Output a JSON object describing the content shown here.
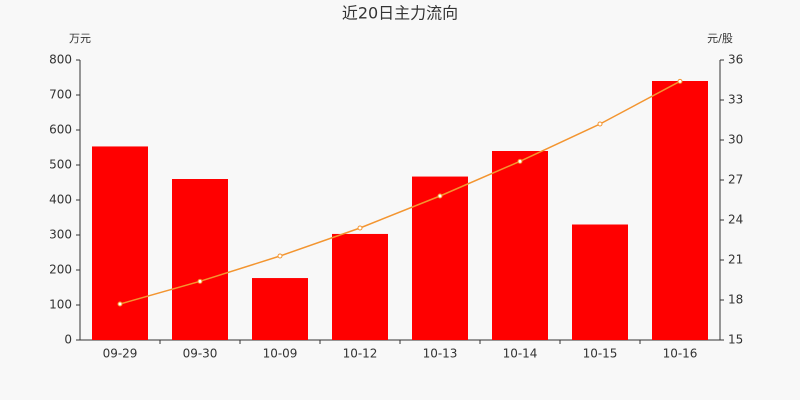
{
  "chart_data": {
    "type": "bar",
    "title": "近20日主力流向",
    "ylabel": "万元",
    "y2label": "元/股",
    "categories": [
      "09-29",
      "09-30",
      "10-09",
      "10-12",
      "10-13",
      "10-14",
      "10-15",
      "10-16"
    ],
    "series": [
      {
        "type": "bar",
        "color": "#ff0000",
        "values": [
          553,
          460,
          177,
          303,
          467,
          540,
          330,
          740
        ]
      },
      {
        "type": "line",
        "axis": "y2",
        "color": "#f39530",
        "values": [
          17.7,
          19.4,
          21.3,
          23.4,
          25.8,
          28.4,
          31.2,
          34.4
        ]
      }
    ],
    "ylim": [
      0,
      800
    ],
    "yticks": [
      0,
      100,
      200,
      300,
      400,
      500,
      600,
      700,
      800
    ],
    "y2lim": [
      15,
      36
    ],
    "y2ticks": [
      15,
      18,
      21,
      24,
      27,
      30,
      33,
      36
    ],
    "grid": false
  }
}
